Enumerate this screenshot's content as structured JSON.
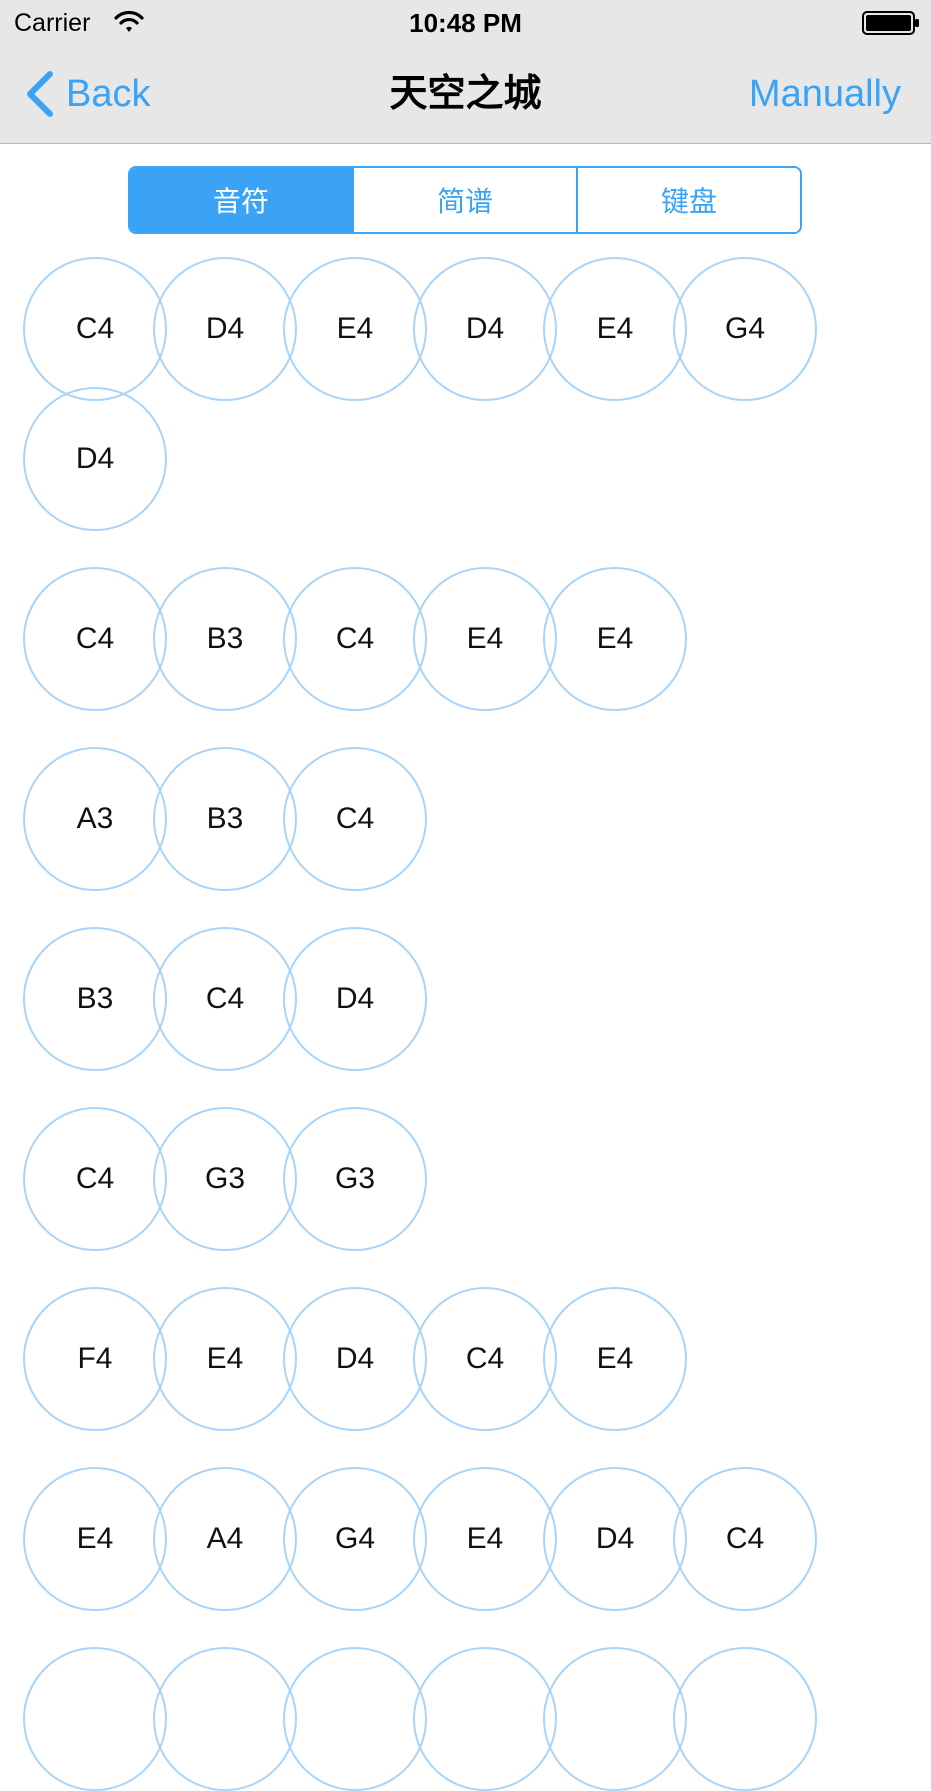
{
  "status_bar": {
    "carrier": "Carrier",
    "time": "10:48 PM"
  },
  "nav": {
    "back_label": "Back",
    "title": "天空之城",
    "right_label": "Manually"
  },
  "segments": [
    {
      "label": "音符",
      "selected": true
    },
    {
      "label": "简谱",
      "selected": false
    },
    {
      "label": "键盘",
      "selected": false
    }
  ],
  "colors": {
    "accent": "#3aa3f6",
    "note_border": "#a8d4fa",
    "nav_background": "#e7e7e7"
  },
  "note_rows": [
    [
      "C4",
      "D4",
      "E4",
      "D4",
      "E4",
      "G4",
      "D4"
    ],
    [
      "C4",
      "B3",
      "C4",
      "E4",
      "E4"
    ],
    [
      "A3",
      "B3",
      "C4"
    ],
    [
      "B3",
      "C4",
      "D4"
    ],
    [
      "C4",
      "G3",
      "G3"
    ],
    [
      "F4",
      "E4",
      "D4",
      "C4",
      "E4"
    ],
    [
      "E4",
      "A4",
      "G4",
      "E4",
      "D4",
      "C4"
    ],
    [
      "",
      "",
      "",
      "",
      "",
      ""
    ]
  ]
}
